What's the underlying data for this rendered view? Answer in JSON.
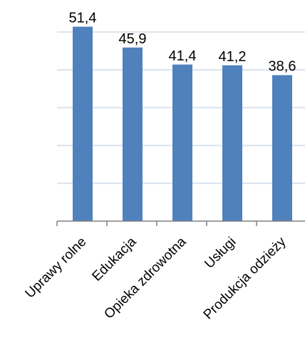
{
  "chart_data": {
    "type": "bar",
    "categories": [
      "Uprawy rolne",
      "Edukacja",
      "Opieka zdrowotna",
      "Usługi",
      "Produkcja odzieży"
    ],
    "values": [
      51.4,
      45.9,
      41.4,
      41.2,
      38.6
    ],
    "value_labels": [
      "51,4",
      "45,9",
      "41,4",
      "41,2",
      "38,6"
    ],
    "title": "",
    "xlabel": "",
    "ylabel": "",
    "ylim": [
      0,
      50
    ],
    "grid": true,
    "legend": "none",
    "bar_color": "#4f81bd",
    "grid_color": "#d9e3ee",
    "axis_color": "#808080"
  }
}
